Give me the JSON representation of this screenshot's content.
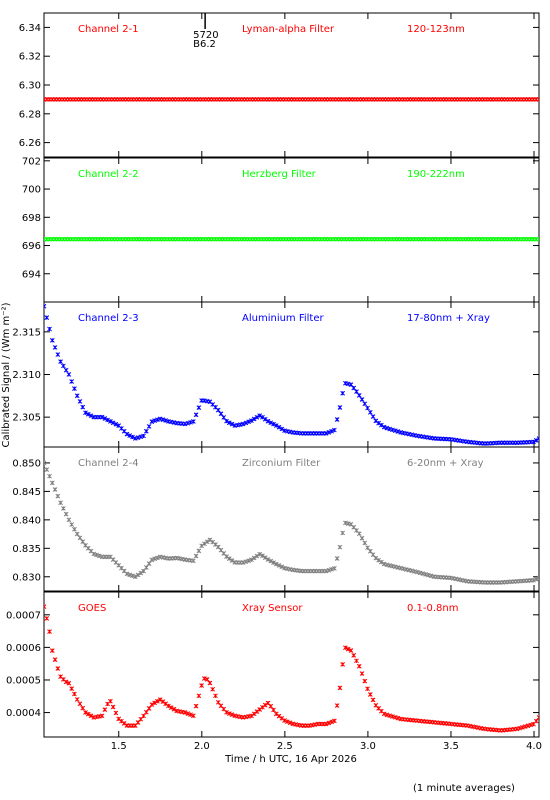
{
  "figure": {
    "xlabel": "Time / h UTC, 16 Apr 2026",
    "ylabel": "Calibrated Signal / (Wm m⁻²)",
    "footnote": "(1 minute averages)",
    "xlim": [
      1.05,
      4.03
    ],
    "xticks": [
      "1.5",
      "2.0",
      "2.5",
      "3.0",
      "3.5",
      "4.0"
    ],
    "xtick_values": [
      1.5,
      2.0,
      2.5,
      3.0,
      3.5,
      4.0
    ]
  },
  "chart_data": [
    {
      "type": "scatter",
      "channel": "Channel 2-1",
      "filter": "Lyman-alpha Filter",
      "band": "120-123nm",
      "color": "#ff0000",
      "ylim": [
        6.25,
        6.35
      ],
      "yticks": [
        "6.26",
        "6.28",
        "6.30",
        "6.32",
        "6.34"
      ],
      "ytick_values": [
        6.26,
        6.28,
        6.3,
        6.32,
        6.34
      ],
      "flare_marker": {
        "x": 2.02,
        "labels": [
          "5720",
          "B6.2"
        ]
      },
      "constant_y": 6.29,
      "x": [],
      "y": []
    },
    {
      "type": "scatter",
      "channel": "Channel 2-2",
      "filter": "Herzberg Filter",
      "band": "190-222nm",
      "color": "#00ff00",
      "ylim": [
        692.0,
        702.2
      ],
      "yticks": [
        "694",
        "696",
        "698",
        "700",
        "702"
      ],
      "ytick_values": [
        694,
        696,
        698,
        700,
        702
      ],
      "constant_y": 696.45,
      "x": [],
      "y": []
    },
    {
      "type": "scatter",
      "channel": "Channel 2-3",
      "filter": "Aluminium Filter",
      "band": "17-80nm + Xray",
      "color": "#0000ff",
      "ylim": [
        2.3015,
        2.3185
      ],
      "yticks": [
        "2.305",
        "2.310",
        "2.315"
      ],
      "ytick_values": [
        2.305,
        2.31,
        2.315
      ],
      "x": [
        1.05,
        1.1,
        1.15,
        1.2,
        1.25,
        1.3,
        1.35,
        1.4,
        1.45,
        1.5,
        1.55,
        1.6,
        1.65,
        1.7,
        1.75,
        1.8,
        1.85,
        1.9,
        1.95,
        2.0,
        2.05,
        2.1,
        2.15,
        2.2,
        2.25,
        2.3,
        2.35,
        2.4,
        2.45,
        2.5,
        2.55,
        2.6,
        2.65,
        2.7,
        2.75,
        2.8,
        2.83,
        2.86,
        2.9,
        2.95,
        3.0,
        3.05,
        3.1,
        3.2,
        3.3,
        3.4,
        3.5,
        3.6,
        3.7,
        3.8,
        3.9,
        4.0,
        4.03
      ],
      "y": [
        2.318,
        2.314,
        2.3115,
        2.31,
        2.3075,
        2.3055,
        2.305,
        2.305,
        2.3045,
        2.304,
        2.303,
        2.3025,
        2.3028,
        2.3045,
        2.3048,
        2.3045,
        2.3043,
        2.3042,
        2.3045,
        2.307,
        2.3068,
        2.3058,
        2.3045,
        2.304,
        2.3042,
        2.3046,
        2.3052,
        2.3045,
        2.304,
        2.3034,
        2.3032,
        2.3031,
        2.3031,
        2.3031,
        2.3031,
        2.3035,
        2.306,
        2.309,
        2.3088,
        2.3075,
        2.306,
        2.3045,
        2.3038,
        2.3032,
        2.3028,
        2.3025,
        2.3024,
        2.3021,
        2.3019,
        2.302,
        2.302,
        2.3021,
        2.3025
      ]
    },
    {
      "type": "scatter",
      "channel": "Channel 2-4",
      "filter": "Zirconium Filter",
      "band": "6-20nm + Xray",
      "color": "#808080",
      "ylim": [
        0.8275,
        0.8528
      ],
      "yticks": [
        "0.830",
        "0.835",
        "0.840",
        "0.845",
        "0.850"
      ],
      "ytick_values": [
        0.83,
        0.835,
        0.84,
        0.845,
        0.85
      ],
      "x": [
        1.05,
        1.1,
        1.15,
        1.2,
        1.25,
        1.3,
        1.35,
        1.4,
        1.45,
        1.5,
        1.55,
        1.6,
        1.65,
        1.7,
        1.75,
        1.8,
        1.85,
        1.9,
        1.95,
        2.0,
        2.05,
        2.1,
        2.15,
        2.2,
        2.25,
        2.3,
        2.35,
        2.4,
        2.45,
        2.5,
        2.55,
        2.6,
        2.65,
        2.7,
        2.75,
        2.8,
        2.83,
        2.86,
        2.9,
        2.95,
        3.0,
        3.05,
        3.1,
        3.2,
        3.3,
        3.4,
        3.5,
        3.6,
        3.7,
        3.8,
        3.9,
        4.0,
        4.03
      ],
      "y": [
        0.85,
        0.8465,
        0.843,
        0.84,
        0.8375,
        0.8355,
        0.834,
        0.8335,
        0.8335,
        0.832,
        0.8305,
        0.83,
        0.831,
        0.833,
        0.8335,
        0.8332,
        0.8333,
        0.833,
        0.8328,
        0.8355,
        0.8365,
        0.8352,
        0.8335,
        0.8325,
        0.8325,
        0.833,
        0.834,
        0.833,
        0.8322,
        0.8315,
        0.8312,
        0.831,
        0.831,
        0.831,
        0.831,
        0.8315,
        0.835,
        0.8395,
        0.8392,
        0.8375,
        0.835,
        0.8332,
        0.8322,
        0.8315,
        0.8308,
        0.83,
        0.8298,
        0.8292,
        0.829,
        0.829,
        0.8292,
        0.8294,
        0.8298
      ]
    },
    {
      "type": "scatter",
      "channel": "GOES",
      "filter": "Xray Sensor",
      "band": "0.1-0.8nm",
      "color": "#ff0000",
      "ylim": [
        0.000325,
        0.00077
      ],
      "yticks": [
        "0.0004",
        "0.0005",
        "0.0006",
        "0.0007"
      ],
      "ytick_values": [
        0.0004,
        0.0005,
        0.0006,
        0.0007
      ],
      "x": [
        1.05,
        1.08,
        1.1,
        1.13,
        1.15,
        1.18,
        1.2,
        1.25,
        1.3,
        1.35,
        1.4,
        1.43,
        1.45,
        1.5,
        1.55,
        1.6,
        1.65,
        1.7,
        1.75,
        1.8,
        1.85,
        1.9,
        1.95,
        2.0,
        2.02,
        2.05,
        2.1,
        2.15,
        2.2,
        2.25,
        2.3,
        2.35,
        2.4,
        2.45,
        2.5,
        2.55,
        2.6,
        2.65,
        2.7,
        2.75,
        2.8,
        2.83,
        2.86,
        2.9,
        2.95,
        3.0,
        3.05,
        3.1,
        3.2,
        3.3,
        3.4,
        3.5,
        3.6,
        3.7,
        3.8,
        3.9,
        4.0,
        4.03
      ],
      "y": [
        0.000725,
        0.00066,
        0.00059,
        0.00054,
        0.00051,
        0.000495,
        0.00049,
        0.00044,
        0.0004,
        0.000385,
        0.00039,
        0.000425,
        0.000435,
        0.00038,
        0.00036,
        0.00036,
        0.00039,
        0.000425,
        0.00044,
        0.00042,
        0.000405,
        0.0004,
        0.00039,
        0.000485,
        0.00051,
        0.00049,
        0.00043,
        0.0004,
        0.00039,
        0.000385,
        0.00039,
        0.00041,
        0.00043,
        0.000395,
        0.000375,
        0.000365,
        0.00036,
        0.00036,
        0.000365,
        0.000365,
        0.000375,
        0.00047,
        0.0006,
        0.00059,
        0.00054,
        0.00047,
        0.00042,
        0.000395,
        0.00038,
        0.000375,
        0.00037,
        0.000365,
        0.00036,
        0.00035,
        0.000345,
        0.00035,
        0.000365,
        0.000385
      ]
    }
  ]
}
